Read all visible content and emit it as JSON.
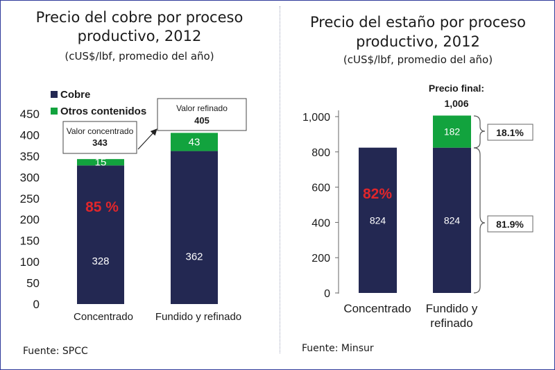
{
  "chart_data": [
    {
      "type": "bar",
      "stacked": true,
      "title": "Precio del cobre por proceso productivo, 2012",
      "subtitle": "(cUS$/lbf, promedio del año)",
      "categories": [
        "Concentrado",
        "Fundido y refinado"
      ],
      "series": [
        {
          "name": "Cobre",
          "values": [
            328,
            362
          ],
          "color": "#232852"
        },
        {
          "name": "Otros contenidos",
          "values": [
            15,
            43
          ],
          "color": "#12a33e"
        }
      ],
      "ylim": [
        0,
        450
      ],
      "yticks": [
        "0",
        "50",
        "100",
        "150",
        "200",
        "250",
        "300",
        "350",
        "400",
        "450"
      ],
      "grid": false,
      "legend": "top-left",
      "annotations": [
        {
          "label": "Valor concentrado",
          "value": "343",
          "category": "Concentrado"
        },
        {
          "label": "Valor refinado",
          "value": "405",
          "category": "Fundido y refinado"
        },
        {
          "text": "85 %",
          "color": "#e0262b"
        }
      ],
      "source": "Fuente: SPCC"
    },
    {
      "type": "bar",
      "stacked": true,
      "title": "Precio del estaño por proceso productivo, 2012",
      "subtitle": "(cUS$/lbf, promedio del año)",
      "categories": [
        "Concentrado",
        "Fundido y refinado"
      ],
      "series": [
        {
          "values": [
            824,
            824
          ],
          "color": "#232852"
        },
        {
          "values": [
            0,
            182
          ],
          "color": "#12a33e"
        }
      ],
      "ylim": [
        0,
        1000
      ],
      "yticks": [
        "0",
        "200",
        "400",
        "600",
        "800",
        "1,000"
      ],
      "grid": false,
      "annotations": [
        {
          "label": "Precio final:",
          "value": "1,006",
          "category": "Fundido y refinado"
        },
        {
          "text": "82%",
          "color": "#e0262b"
        },
        {
          "bracket": "18.1%"
        },
        {
          "bracket": "81.9%"
        }
      ],
      "source": "Fuente: Minsur"
    }
  ],
  "labels": {
    "left": {
      "title_line1": "Precio del cobre por proceso",
      "title_line2": "productivo, 2012",
      "subtitle": "(cUS$/lbf, promedio del año)",
      "cat1": "Concentrado",
      "cat2": "Fundido y refinado"
    },
    "right": {
      "title_line1": "Precio del estaño por proceso",
      "title_line2": "productivo, 2012",
      "subtitle": "(cUS$/lbf, promedio del año)",
      "cat1": "Concentrado",
      "cat2_line1": "Fundido y",
      "cat2_line2": "refinado"
    }
  }
}
